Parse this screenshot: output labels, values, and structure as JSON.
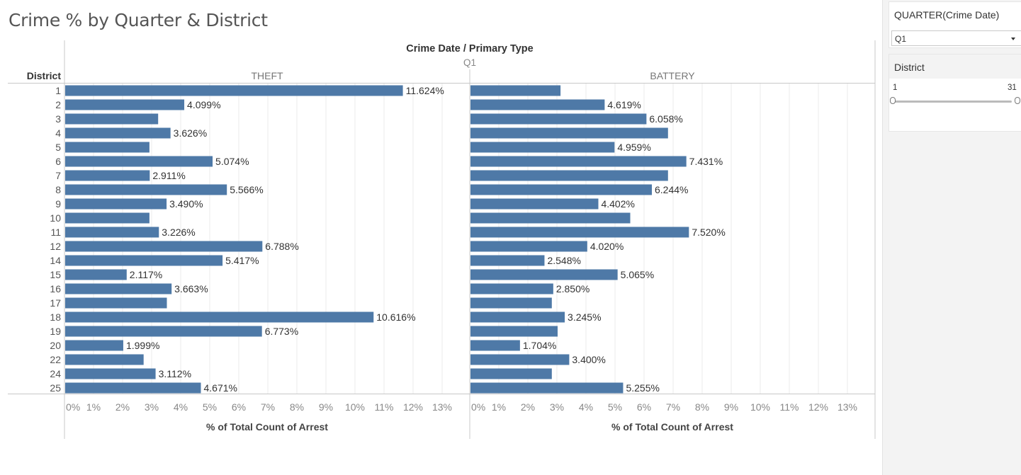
{
  "title": "Crime % by Quarter & District",
  "colors": {
    "bar": "#4e79a7",
    "grid": "#ebebeb",
    "axis": "#c8c8c8"
  },
  "filters": {
    "quarter": {
      "label": "QUARTER(Crime Date)",
      "selected": "Q1",
      "icon": "chevron-down-icon"
    },
    "district": {
      "label": "District",
      "min": "1",
      "max": "31"
    }
  },
  "chart_data": {
    "type": "bar",
    "orientation": "horizontal",
    "column_header": "Crime Date  /  Primary Type",
    "quarter": "Q1",
    "row_header": "District",
    "categories": [
      "1",
      "2",
      "3",
      "4",
      "5",
      "6",
      "7",
      "8",
      "9",
      "10",
      "11",
      "12",
      "14",
      "15",
      "16",
      "17",
      "18",
      "19",
      "20",
      "22",
      "24",
      "25"
    ],
    "xlabel": "% of Total Count of Arrest",
    "xlim": [
      0,
      14
    ],
    "xticks": [
      "0%",
      "1%",
      "2%",
      "3%",
      "4%",
      "5%",
      "6%",
      "7%",
      "8%",
      "9%",
      "10%",
      "11%",
      "12%",
      "13%"
    ],
    "grid": true,
    "panes": [
      {
        "name": "THEFT",
        "values": [
          11.624,
          4.099,
          3.2,
          3.626,
          2.9,
          5.074,
          2.911,
          5.566,
          3.49,
          2.9,
          3.226,
          6.788,
          5.417,
          2.117,
          3.663,
          3.5,
          10.616,
          6.773,
          1.999,
          2.7,
          3.112,
          4.671
        ],
        "labels": [
          "11.624%",
          "4.099%",
          "",
          "3.626%",
          "",
          "5.074%",
          "2.911%",
          "5.566%",
          "3.490%",
          "",
          "3.226%",
          "6.788%",
          "5.417%",
          "2.117%",
          "3.663%",
          "",
          "10.616%",
          "6.773%",
          "1.999%",
          "",
          "3.112%",
          "4.671%"
        ]
      },
      {
        "name": "BATTERY",
        "values": [
          3.1,
          4.619,
          6.058,
          6.8,
          4.959,
          7.431,
          6.8,
          6.244,
          4.402,
          5.5,
          7.52,
          4.02,
          2.548,
          5.065,
          2.85,
          2.8,
          3.245,
          3.0,
          1.704,
          3.4,
          2.8,
          5.255
        ],
        "labels": [
          "",
          "4.619%",
          "6.058%",
          "",
          "4.959%",
          "7.431%",
          "",
          "6.244%",
          "4.402%",
          "",
          "7.520%",
          "4.020%",
          "2.548%",
          "5.065%",
          "2.850%",
          "",
          "3.245%",
          "",
          "1.704%",
          "3.400%",
          "",
          "5.255%"
        ]
      }
    ]
  }
}
